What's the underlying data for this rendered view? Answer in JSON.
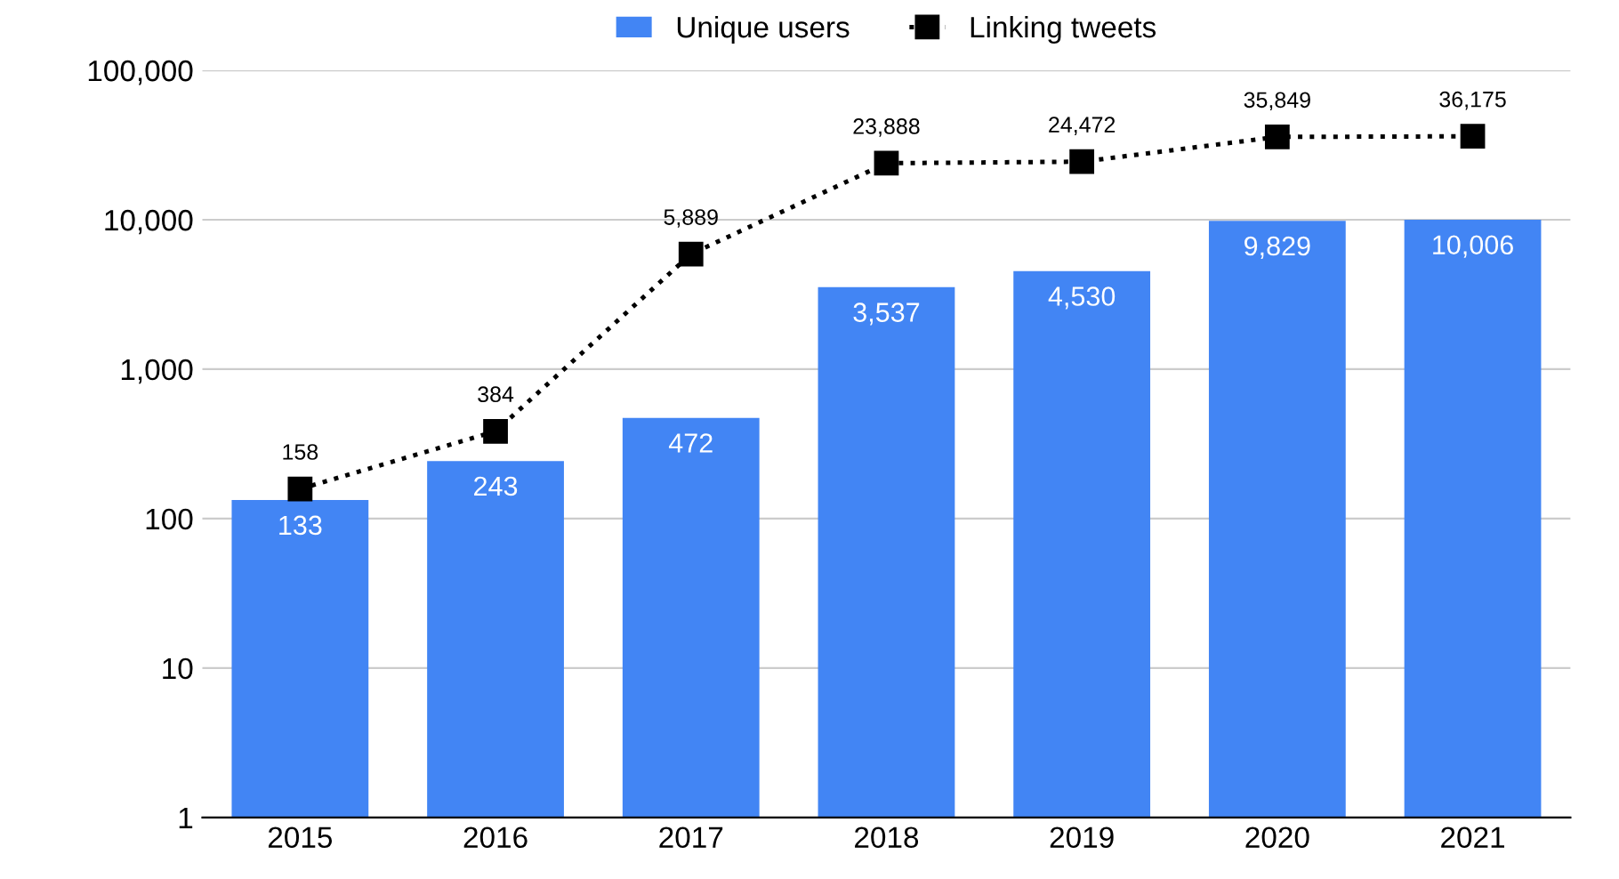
{
  "chart_data": {
    "type": "bar",
    "categories": [
      "2015",
      "2016",
      "2017",
      "2018",
      "2019",
      "2020",
      "2021"
    ],
    "series": [
      {
        "name": "Unique users",
        "color": "#4285f4",
        "values": [
          133,
          243,
          472,
          3537,
          4530,
          9829,
          10006
        ],
        "value_labels": [
          "133",
          "243",
          "472",
          "3,537",
          "4,530",
          "9,829",
          "10,006"
        ]
      },
      {
        "name": "Linking tweets",
        "type": "line",
        "color": "#000000",
        "marker": "square",
        "line_style": "dotted",
        "values": [
          158,
          384,
          5889,
          23888,
          24472,
          35849,
          36175
        ],
        "value_labels": [
          "158",
          "384",
          "5,889",
          "23,888",
          "24,472",
          "35,849",
          "36,175"
        ]
      }
    ],
    "log": "y",
    "ylim": [
      1,
      100000
    ],
    "yticks": [
      {
        "value": 1,
        "label": "1"
      },
      {
        "value": 10,
        "label": "10"
      },
      {
        "value": 100,
        "label": "100"
      },
      {
        "value": 1000,
        "label": "1,000"
      },
      {
        "value": 10000,
        "label": "10,000"
      },
      {
        "value": 100000,
        "label": "100,000"
      }
    ],
    "grid": "y",
    "legend": "top"
  }
}
